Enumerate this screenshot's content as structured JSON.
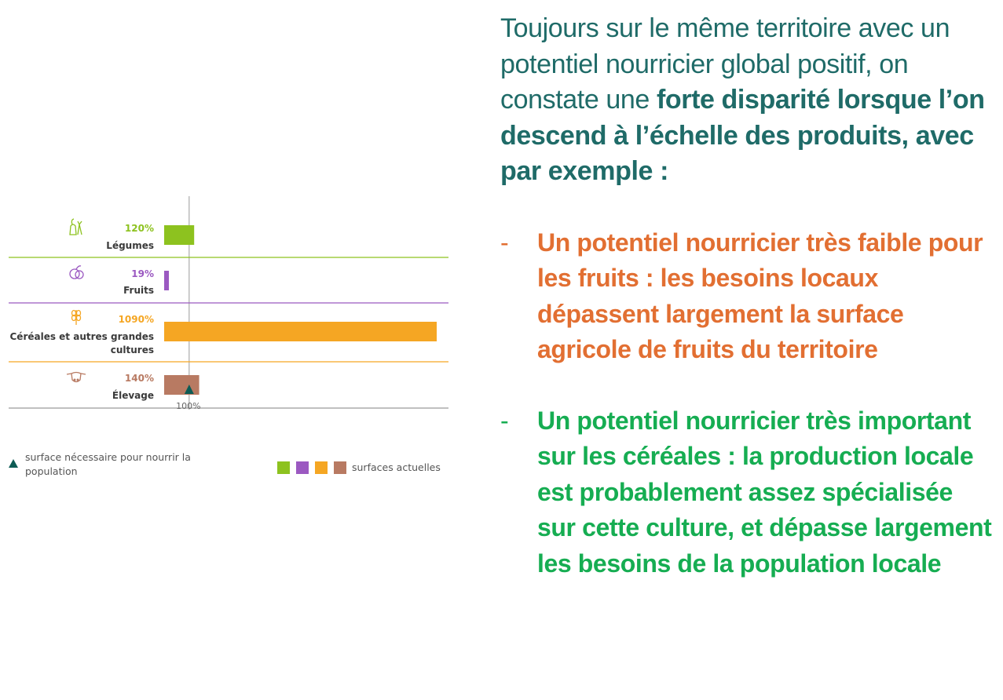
{
  "chart_data": {
    "type": "bar",
    "orientation": "horizontal",
    "categories": [
      {
        "label_lines": [
          "Légumes"
        ],
        "value": 120,
        "value_label": "120%",
        "color": "#8dc21f",
        "icon": "vegetables-icon"
      },
      {
        "label_lines": [
          "Fruits"
        ],
        "value": 19,
        "value_label": "19%",
        "color": "#9b59c1",
        "icon": "fruit-icon"
      },
      {
        "label_lines": [
          "Céréales et autres grandes",
          "cultures"
        ],
        "value": 1090,
        "value_label": "1090%",
        "color": "#f5a623",
        "icon": "wheat-icon"
      },
      {
        "label_lines": [
          "Élevage"
        ],
        "value": 140,
        "value_label": "140%",
        "color": "#b87a62",
        "icon": "cow-icon"
      }
    ],
    "reference_line": {
      "value": 100,
      "label": "100%",
      "marker_color": "#0d5c55"
    },
    "xlim": [
      0,
      1100
    ],
    "legend": {
      "triangle_text_lines": [
        "surface nécessaire pour nourrir la",
        "population"
      ],
      "squares_text": "surfaces actuelles",
      "square_colors": [
        "#8dc21f",
        "#9b59c1",
        "#f5a623",
        "#b87a62"
      ]
    }
  },
  "text": {
    "intro_normal_1": "Toujours sur le même territoire avec un potentiel nourricier global positif, on constate une ",
    "intro_bold": "forte disparité lorsque l’on descend à l’échelle des produits, avec par exemple :",
    "dash": "-",
    "bullet_1": "Un potentiel nourricier très faible pour les fruits : les besoins locaux dépassent largement la surface agricole de fruits du territoire",
    "bullet_2": "Un potentiel nourricier très important sur les céréales : la production locale est probablement assez spécialisée sur cette culture, et dépasse largement les besoins de la population locale"
  },
  "colors": {
    "intro": "#1f6b68",
    "bullet_orange": "#e26f32",
    "bullet_green": "#16ad52"
  }
}
